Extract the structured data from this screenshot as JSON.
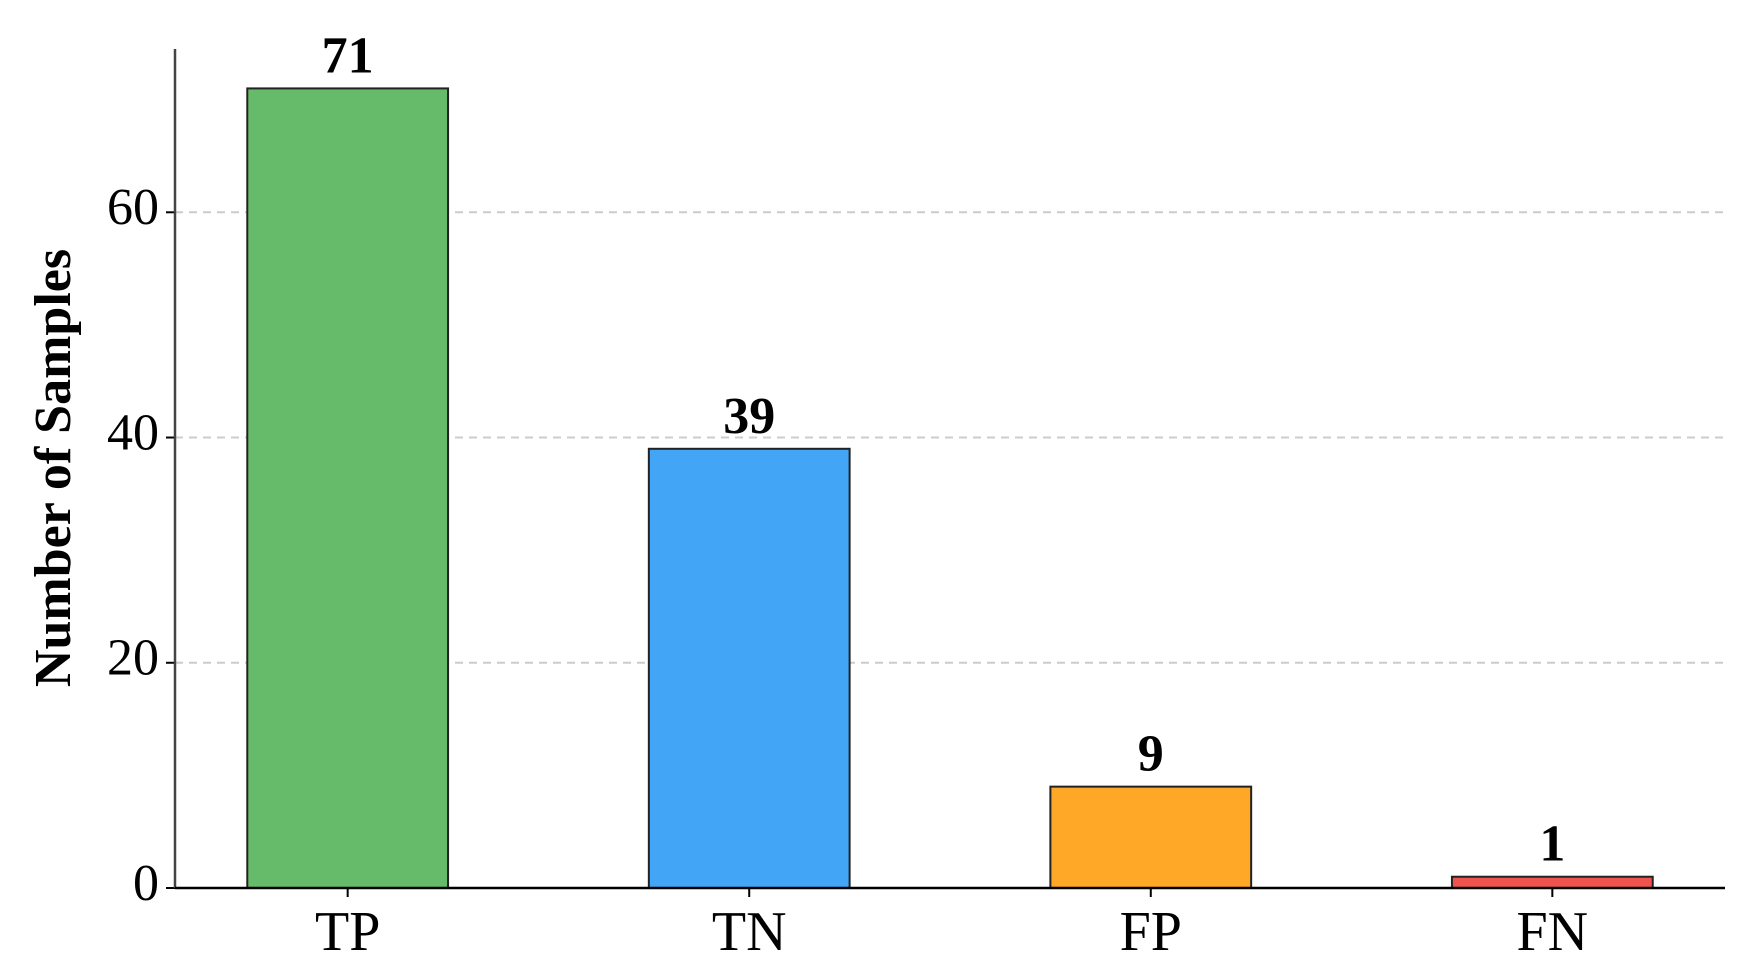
{
  "chart_data": {
    "type": "bar",
    "y_label": "Number of Samples",
    "categories": [
      "TP",
      "TN",
      "FP",
      "FN"
    ],
    "values": [
      71,
      39,
      9,
      1
    ],
    "colors": [
      "#66bb6a",
      "#42a5f5",
      "#ffa726",
      "#ef5350"
    ],
    "ylim": [
      0,
      74.5
    ],
    "yticks": [
      0,
      20,
      40,
      60
    ],
    "grid": true
  }
}
